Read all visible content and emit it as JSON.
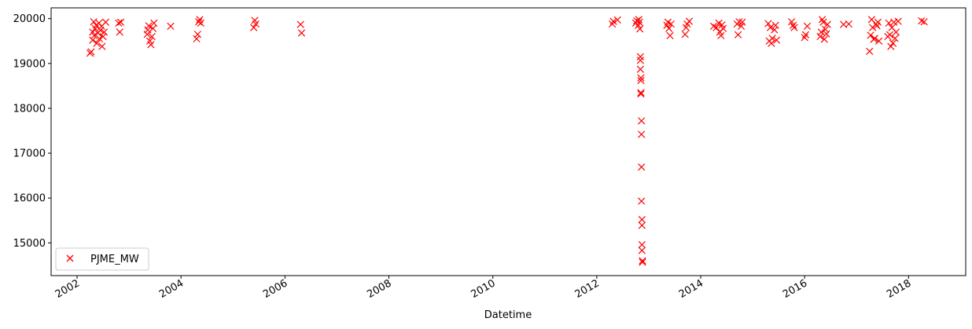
{
  "chart_data": {
    "type": "scatter",
    "title": "",
    "xlabel": "Datetime",
    "ylabel": "",
    "xlim": [
      2001.5,
      2019.1
    ],
    "ylim": [
      14270,
      20240
    ],
    "grid": false,
    "legend_position": "bottom-left",
    "marker": "x",
    "x_ticks": [
      2002,
      2004,
      2006,
      2008,
      2010,
      2012,
      2014,
      2016,
      2018
    ],
    "x_tick_labels": [
      "2002",
      "2004",
      "2006",
      "2008",
      "2010",
      "2012",
      "2014",
      "2016",
      "2018"
    ],
    "y_ticks": [
      15000,
      16000,
      17000,
      18000,
      19000,
      20000
    ],
    "y_tick_labels": [
      "15000",
      "16000",
      "17000",
      "18000",
      "19000",
      "20000"
    ],
    "series": [
      {
        "name": "PJME_MW",
        "color": "#ff0000",
        "points": [
          [
            2002.25,
            19230
          ],
          [
            2002.27,
            19260
          ],
          [
            2002.3,
            19520
          ],
          [
            2002.3,
            19700
          ],
          [
            2002.32,
            19930
          ],
          [
            2002.33,
            19620
          ],
          [
            2002.35,
            19780
          ],
          [
            2002.37,
            19850
          ],
          [
            2002.38,
            19450
          ],
          [
            2002.4,
            19680
          ],
          [
            2002.42,
            19900
          ],
          [
            2002.43,
            19550
          ],
          [
            2002.45,
            19740
          ],
          [
            2002.47,
            19830
          ],
          [
            2002.48,
            19380
          ],
          [
            2002.5,
            19600
          ],
          [
            2002.52,
            19700
          ],
          [
            2002.55,
            19920
          ],
          [
            2002.8,
            19900
          ],
          [
            2002.82,
            19700
          ],
          [
            2002.84,
            19920
          ],
          [
            2003.35,
            19650
          ],
          [
            2003.36,
            19750
          ],
          [
            2003.38,
            19840
          ],
          [
            2003.4,
            19500
          ],
          [
            2003.42,
            19420
          ],
          [
            2003.44,
            19600
          ],
          [
            2003.46,
            19780
          ],
          [
            2003.48,
            19900
          ],
          [
            2003.8,
            19830
          ],
          [
            2004.3,
            19550
          ],
          [
            2004.32,
            19650
          ],
          [
            2004.34,
            19930
          ],
          [
            2004.36,
            19980
          ],
          [
            2004.38,
            19900
          ],
          [
            2005.4,
            19800
          ],
          [
            2005.42,
            19960
          ],
          [
            2005.44,
            19880
          ],
          [
            2006.3,
            19870
          ],
          [
            2006.32,
            19680
          ],
          [
            2012.3,
            19880
          ],
          [
            2012.32,
            19940
          ],
          [
            2012.4,
            19970
          ],
          [
            2012.75,
            19900
          ],
          [
            2012.77,
            19950
          ],
          [
            2012.8,
            19850
          ],
          [
            2012.81,
            19980
          ],
          [
            2012.82,
            19920
          ],
          [
            2012.83,
            19770
          ],
          [
            2012.84,
            19150
          ],
          [
            2012.84,
            19070
          ],
          [
            2012.84,
            18870
          ],
          [
            2012.85,
            18680
          ],
          [
            2012.85,
            18620
          ],
          [
            2012.85,
            18350
          ],
          [
            2012.85,
            18320
          ],
          [
            2012.86,
            17720
          ],
          [
            2012.86,
            17420
          ],
          [
            2012.86,
            16690
          ],
          [
            2012.86,
            15930
          ],
          [
            2012.87,
            15520
          ],
          [
            2012.87,
            15390
          ],
          [
            2012.87,
            14960
          ],
          [
            2012.87,
            14830
          ],
          [
            2012.88,
            14600
          ],
          [
            2012.88,
            14570
          ],
          [
            2013.35,
            19850
          ],
          [
            2013.37,
            19920
          ],
          [
            2013.39,
            19780
          ],
          [
            2013.41,
            19620
          ],
          [
            2013.43,
            19880
          ],
          [
            2013.7,
            19650
          ],
          [
            2013.72,
            19800
          ],
          [
            2013.74,
            19880
          ],
          [
            2013.78,
            19940
          ],
          [
            2014.25,
            19830
          ],
          [
            2014.3,
            19800
          ],
          [
            2014.35,
            19900
          ],
          [
            2014.37,
            19700
          ],
          [
            2014.39,
            19620
          ],
          [
            2014.41,
            19860
          ],
          [
            2014.43,
            19780
          ],
          [
            2014.7,
            19880
          ],
          [
            2014.72,
            19640
          ],
          [
            2014.74,
            19930
          ],
          [
            2014.78,
            19830
          ],
          [
            2014.8,
            19920
          ],
          [
            2015.3,
            19890
          ],
          [
            2015.32,
            19500
          ],
          [
            2015.34,
            19800
          ],
          [
            2015.36,
            19450
          ],
          [
            2015.38,
            19560
          ],
          [
            2015.42,
            19750
          ],
          [
            2015.44,
            19850
          ],
          [
            2015.46,
            19520
          ],
          [
            2015.75,
            19930
          ],
          [
            2015.78,
            19850
          ],
          [
            2015.8,
            19800
          ],
          [
            2016.0,
            19580
          ],
          [
            2016.02,
            19640
          ],
          [
            2016.05,
            19830
          ],
          [
            2016.3,
            19600
          ],
          [
            2016.32,
            19700
          ],
          [
            2016.34,
            19980
          ],
          [
            2016.36,
            19920
          ],
          [
            2016.38,
            19540
          ],
          [
            2016.4,
            19760
          ],
          [
            2016.42,
            19660
          ],
          [
            2016.44,
            19870
          ],
          [
            2016.75,
            19870
          ],
          [
            2016.85,
            19880
          ],
          [
            2017.25,
            19270
          ],
          [
            2017.27,
            19630
          ],
          [
            2017.29,
            19980
          ],
          [
            2017.31,
            19800
          ],
          [
            2017.33,
            19540
          ],
          [
            2017.35,
            19560
          ],
          [
            2017.37,
            19880
          ],
          [
            2017.39,
            19840
          ],
          [
            2017.41,
            19920
          ],
          [
            2017.43,
            19500
          ],
          [
            2017.6,
            19600
          ],
          [
            2017.62,
            19900
          ],
          [
            2017.64,
            19640
          ],
          [
            2017.66,
            19380
          ],
          [
            2017.68,
            19800
          ],
          [
            2017.7,
            19450
          ],
          [
            2017.72,
            19920
          ],
          [
            2017.74,
            19560
          ],
          [
            2017.76,
            19700
          ],
          [
            2017.8,
            19940
          ],
          [
            2018.25,
            19950
          ],
          [
            2018.3,
            19930
          ]
        ]
      }
    ]
  }
}
